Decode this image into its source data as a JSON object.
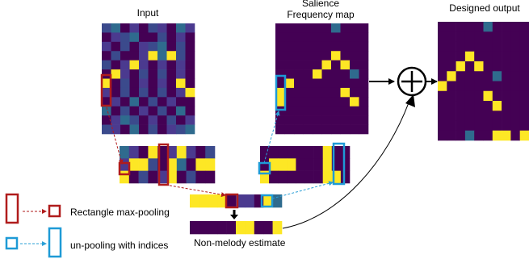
{
  "titles": {
    "input": "Input",
    "salience_line1": "Salience",
    "salience_line2": "Frequency map",
    "output": "Designed output"
  },
  "labels": {
    "non_melody": "Non-melody estimate",
    "legend_maxpool": "Rectangle max-pooling",
    "legend_unpool": "un-pooling with indices"
  },
  "symbols": {
    "sum": "plus-in-circle-icon"
  },
  "colors": {
    "background_cell": "#440154",
    "noise_a": "#3b4a8c",
    "noise_b": "#2f6b8e",
    "noise_c": "#4b3a8f",
    "active": "#fde725",
    "maxpool_box": "#b01c1c",
    "unpool_box": "#1e9ad6",
    "maxpool_arrow": "#b01c1c",
    "unpool_arrow": "#2a9fd6"
  }
}
